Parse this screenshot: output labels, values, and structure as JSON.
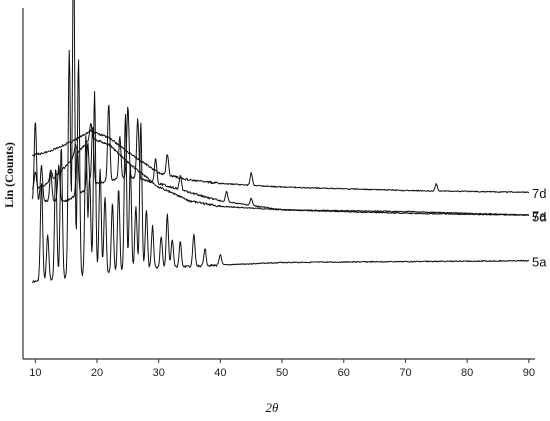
{
  "chart_data": {
    "type": "line",
    "xlabel": "2θ",
    "ylabel": "Lin (Counts)",
    "xlim": [
      8,
      91
    ],
    "x_ticks": [
      10,
      20,
      30,
      40,
      50,
      60,
      70,
      80,
      90
    ],
    "y_ticks_shown": false,
    "grid": false,
    "series": [
      {
        "name": "5a",
        "baseline": [
          [
            9.5,
            0.78
          ],
          [
            30,
            0.74
          ],
          [
            50,
            0.725
          ],
          [
            90,
            0.72
          ]
        ],
        "peaks": [
          [
            11,
            0.28
          ],
          [
            12,
            0.13
          ],
          [
            13.3,
            0.32
          ],
          [
            14.2,
            0.38
          ],
          [
            15.5,
            0.65
          ],
          [
            16.2,
            0.97
          ],
          [
            17,
            0.62
          ],
          [
            18.2,
            0.4
          ],
          [
            18.8,
            0.28
          ],
          [
            19.6,
            0.52
          ],
          [
            20.5,
            0.3
          ],
          [
            21.3,
            0.22
          ],
          [
            22.5,
            0.2
          ],
          [
            23.5,
            0.24
          ],
          [
            24.6,
            0.45
          ],
          [
            25.4,
            0.3
          ],
          [
            26.3,
            0.18
          ],
          [
            27.1,
            0.42
          ],
          [
            28,
            0.17
          ],
          [
            29,
            0.12
          ],
          [
            30.4,
            0.09
          ],
          [
            31.4,
            0.15
          ],
          [
            32.2,
            0.08
          ],
          [
            33.5,
            0.07
          ],
          [
            35.7,
            0.09
          ],
          [
            37.5,
            0.05
          ],
          [
            40,
            0.03
          ]
        ]
      },
      {
        "name": "7a",
        "baseline": [
          [
            9.5,
            0.52
          ],
          [
            12,
            0.5
          ],
          [
            15,
            0.45
          ],
          [
            19,
            0.37
          ],
          [
            22,
            0.39
          ],
          [
            25,
            0.44
          ],
          [
            30,
            0.51
          ],
          [
            35,
            0.55
          ],
          [
            40,
            0.565
          ],
          [
            50,
            0.575
          ],
          [
            70,
            0.585
          ],
          [
            90,
            0.59
          ]
        ],
        "peaks": [
          [
            10,
            0.05
          ],
          [
            12.5,
            0.03
          ],
          [
            16.5,
            0.03
          ],
          [
            19,
            0.04
          ]
        ]
      },
      {
        "name": "5d",
        "baseline": [
          [
            9.5,
            0.55
          ],
          [
            15,
            0.55
          ],
          [
            20,
            0.5
          ],
          [
            25,
            0.48
          ],
          [
            30,
            0.5
          ],
          [
            40,
            0.55
          ],
          [
            50,
            0.575
          ],
          [
            70,
            0.58
          ],
          [
            90,
            0.59
          ]
        ],
        "peaks": [
          [
            10,
            0.23
          ],
          [
            11,
            0.1
          ],
          [
            12.5,
            0.08
          ],
          [
            13.8,
            0.1
          ],
          [
            16.8,
            0.13
          ],
          [
            18.5,
            0.13
          ],
          [
            19.3,
            0.17
          ],
          [
            21.9,
            0.22
          ],
          [
            23.7,
            0.12
          ],
          [
            25,
            0.2
          ],
          [
            26.6,
            0.17
          ],
          [
            29.5,
            0.07
          ],
          [
            33.5,
            0.04
          ],
          [
            41,
            0.03
          ],
          [
            45,
            0.02
          ]
        ]
      },
      {
        "name": "7d",
        "baseline": [
          [
            9.5,
            0.42
          ],
          [
            12,
            0.41
          ],
          [
            16,
            0.38
          ],
          [
            19,
            0.35
          ],
          [
            22,
            0.37
          ],
          [
            25,
            0.41
          ],
          [
            30,
            0.47
          ],
          [
            35,
            0.49
          ],
          [
            40,
            0.5
          ],
          [
            50,
            0.51
          ],
          [
            70,
            0.52
          ],
          [
            90,
            0.525
          ]
        ],
        "peaks": [
          [
            31.4,
            0.06
          ],
          [
            45,
            0.035
          ],
          [
            75,
            0.02
          ]
        ]
      }
    ]
  }
}
